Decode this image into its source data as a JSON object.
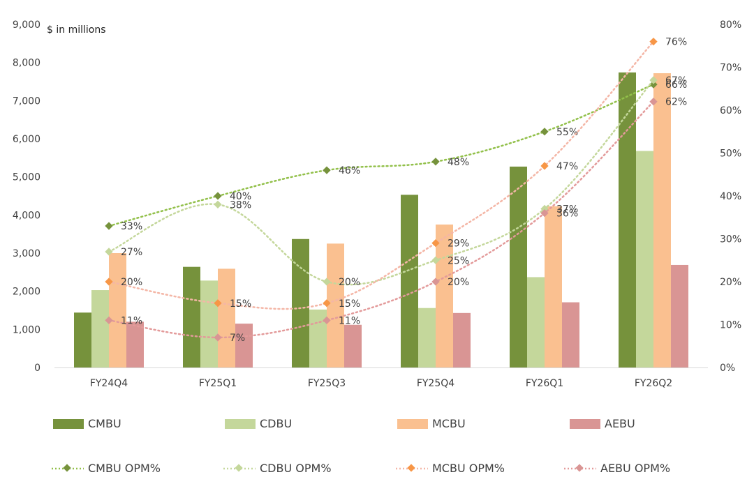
{
  "chart_data": {
    "type": "bar",
    "unit_label": "$ in millions",
    "categories": [
      "FY24Q4",
      "FY25Q1",
      "FY25Q3",
      "FY25Q4",
      "FY26Q1",
      "FY26Q2"
    ],
    "y_left": {
      "min": 0,
      "max": 9000,
      "step": 1000,
      "tick_labels": [
        "0",
        "1,000",
        "2,000",
        "3,000",
        "4,000",
        "5,000",
        "6,000",
        "7,000",
        "8,000",
        "9,000"
      ]
    },
    "y_right": {
      "min": 0,
      "max": 80,
      "step": 10,
      "tick_labels": [
        "0%",
        "10%",
        "20%",
        "30%",
        "40%",
        "50%",
        "60%",
        "70%",
        "80%"
      ]
    },
    "series": [
      {
        "name": "CMBU",
        "color": "#76923c",
        "values": [
          1440,
          2640,
          3370,
          4530,
          5270,
          7740
        ]
      },
      {
        "name": "CDBU",
        "color": "#c4d79b",
        "values": [
          2030,
          2280,
          1520,
          1560,
          2370,
          5680
        ]
      },
      {
        "name": "MCBU",
        "color": "#fac090",
        "values": [
          3000,
          2590,
          3250,
          3750,
          4230,
          7720
        ]
      },
      {
        "name": "AEBU",
        "color": "#d99594",
        "values": [
          1200,
          1150,
          1120,
          1430,
          1710,
          2690
        ]
      }
    ],
    "line_series": [
      {
        "name": "CMBU OPM%",
        "color": "#76923c",
        "line_color": "#92c04a",
        "values": [
          33,
          40,
          46,
          48,
          55,
          66
        ],
        "labels": [
          "33%",
          "40%",
          "46%",
          "48%",
          "55%",
          "66%"
        ]
      },
      {
        "name": "CDBU OPM%",
        "color": "#c4d79b",
        "line_color": "#c4d79b",
        "values": [
          27,
          38,
          20,
          25,
          37,
          67
        ],
        "labels": [
          "27%",
          "38%",
          "20%",
          "25%",
          "37%",
          "67%"
        ]
      },
      {
        "name": "MCBU OPM%",
        "color": "#f79646",
        "line_color": "#f4b6a6",
        "values": [
          20,
          15,
          15,
          29,
          47,
          76
        ],
        "labels": [
          "20%",
          "15%",
          "15%",
          "29%",
          "47%",
          "76%"
        ]
      },
      {
        "name": "AEBU OPM%",
        "color": "#d99594",
        "line_color": "#e39a9a",
        "values": [
          11,
          7,
          11,
          20,
          36,
          62
        ],
        "labels": [
          "11%",
          "7%",
          "11%",
          "20%",
          "36%",
          "62%"
        ]
      }
    ],
    "legend": {
      "bars": [
        "CMBU",
        "CDBU",
        "MCBU",
        "AEBU"
      ],
      "lines": [
        "CMBU OPM%",
        "CDBU OPM%",
        "MCBU OPM%",
        "AEBU OPM%"
      ]
    }
  }
}
